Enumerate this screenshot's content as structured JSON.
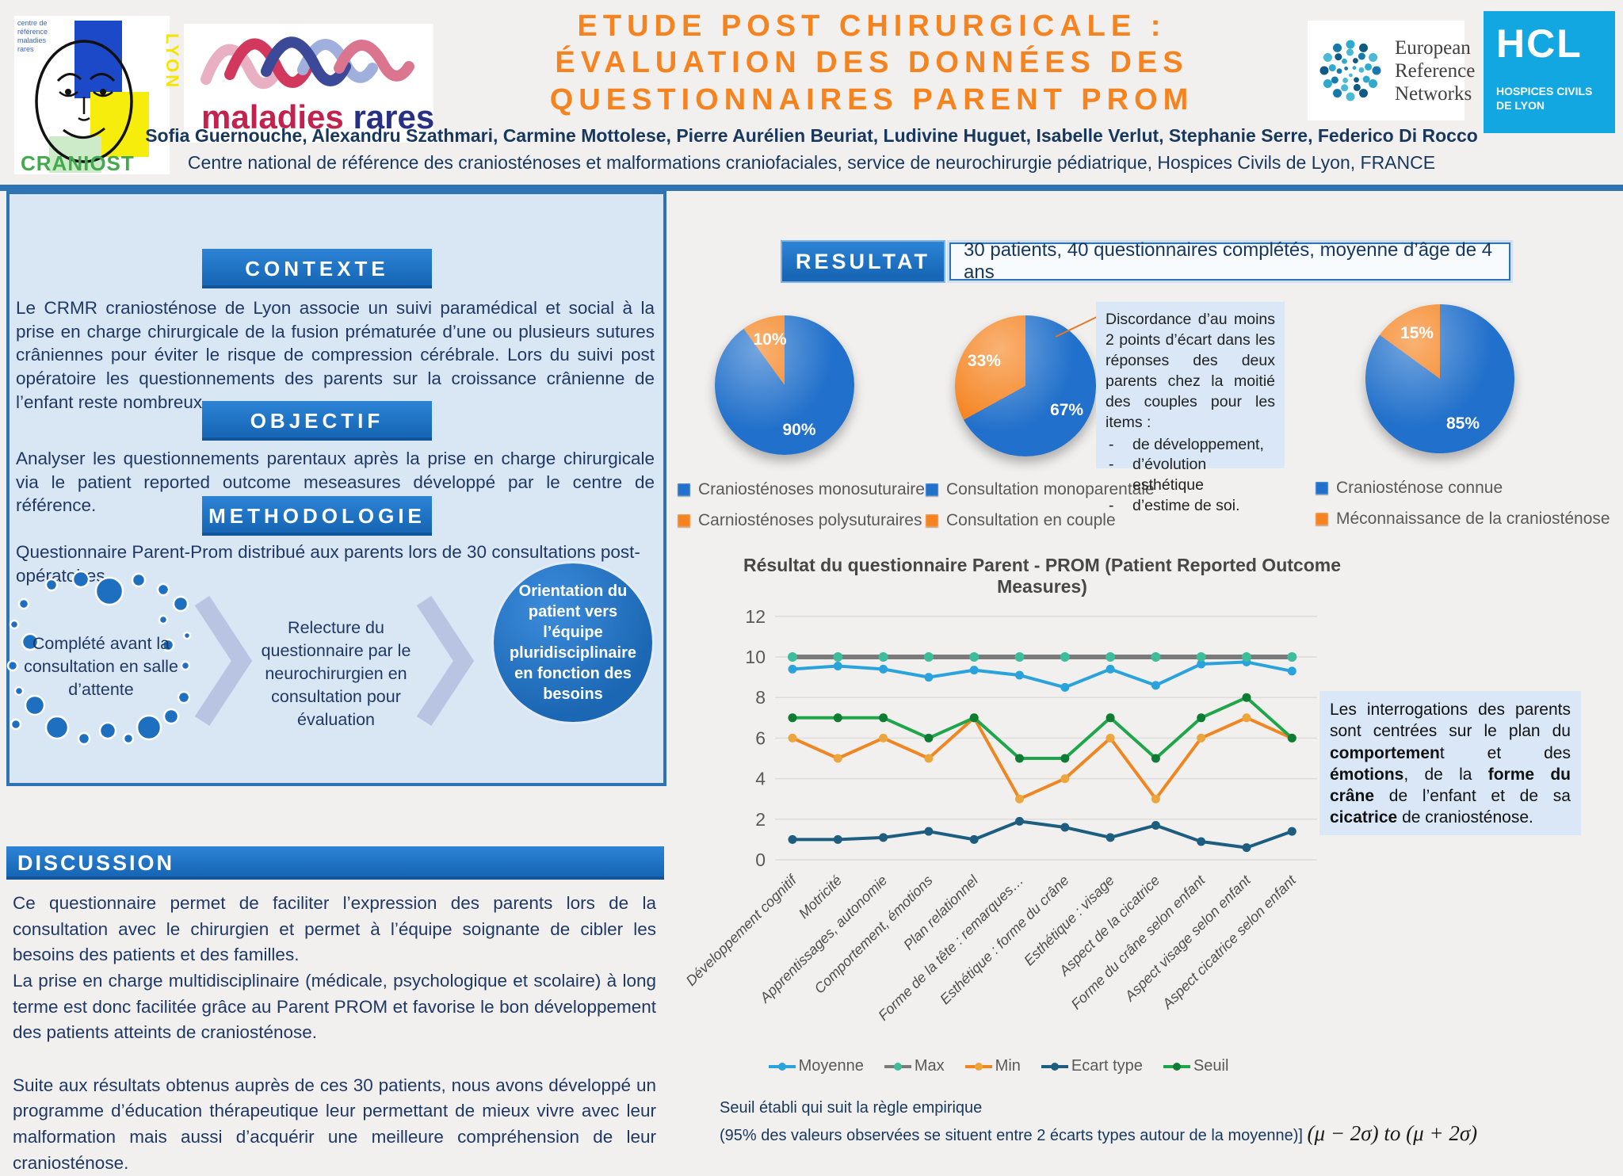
{
  "palette": {
    "accent_orange": "#f5831f",
    "accent_blue": "#2e74b5",
    "panel_bg": "#d9e6f4",
    "note_bg": "#d9e7f6",
    "navy_text": "#1f3864"
  },
  "header": {
    "title_lines": [
      "ETUDE POST CHIRURGICALE :",
      "ÉVALUATION DES DONNÉES DES",
      "QUESTIONNAIRES PARENT PROM"
    ],
    "authors": "Sofia Guernouche, Alexandru Szathmari, Carmine Mottolese, Pierre Aurélien Beuriat, Ludivine Huguet, Isabelle Verlut, Stephanie Serre, Federico Di Rocco",
    "affiliation": "Centre national de référence des craniosténoses et malformations craniofaciales, service de neurochirurgie pédiatrique, Hospices Civils de Lyon, FRANCE",
    "logos": {
      "craniost": {
        "name": "CRANIOST",
        "lyon": "LYON",
        "small_lines": [
          "centre de",
          "référence",
          "maladies",
          "rares"
        ]
      },
      "maladies_rares": {
        "word1": "maladies",
        "word2": " rares"
      },
      "ern": {
        "lines": [
          "European",
          "Reference",
          "Networks"
        ]
      },
      "hcl": {
        "acronym": "HCL",
        "sub_lines": [
          "HOSPICES CIVILS",
          "DE LYON"
        ]
      }
    }
  },
  "left": {
    "contexte": {
      "heading": "CONTEXTE",
      "body": "Le CRMR craniosténose de Lyon associe un suivi paramédical et social à la prise en charge chirurgicale de la fusion prématurée d’une ou plusieurs sutures crâniennes pour éviter le risque de compression cérébrale. Lors du suivi post opératoire les questionnements des parents sur la croissance crânienne de l’enfant reste nombreux."
    },
    "objectif": {
      "heading": "OBJECTIF",
      "body": "Analyser les questionnements parentaux après la prise en charge chirurgicale via le patient reported outcome meseasures développé par le centre de référence."
    },
    "methodologie": {
      "heading": "METHODOLOGIE",
      "body": "Questionnaire Parent-Prom distribué aux parents lors de 30 consultations post-opératoires",
      "flow": [
        "Complété avant la consultation en salle d’attente",
        "Relecture du questionnaire par le neurochirurgien en consultation pour évaluation",
        "Orientation du patient vers l’équipe pluridisciplinaire en fonction des besoins"
      ]
    }
  },
  "discussion": {
    "heading": "DISCUSSION",
    "paragraphs": [
      "Ce questionnaire permet de faciliter l’expression des parents lors de la consultation avec le chirurgien et permet à l’équipe soignante de cibler les besoins des patients et des familles.",
      "La prise en charge multidisciplinaire (médicale, psychologique et scolaire) à long terme est donc facilitée grâce au Parent PROM et favorise le bon développement des patients atteints de craniosténose.",
      "Suite aux résultats obtenus auprès de ces 30 patients, nous avons développé un programme d’éducation thérapeutique leur permettant de mieux vivre avec leur malformation mais aussi d’acquérir une meilleure compréhension de leur craniosténose."
    ]
  },
  "results": {
    "heading": "RESULTAT",
    "summary": "30 patients, 40 questionnaires complétés, moyenne d’âge de 4 ans",
    "pies": [
      {
        "slices": [
          {
            "label": "Craniosténoses monosuturaire",
            "pct": 90,
            "color": "#2170cb"
          },
          {
            "label": "Carniosténoses polysuturaires",
            "pct": 10,
            "color": "#f5831f"
          }
        ]
      },
      {
        "slices": [
          {
            "label": "Consultation monoparentale",
            "pct": 67,
            "color": "#2170cb"
          },
          {
            "label": "Consultation en couple",
            "pct": 33,
            "color": "#f5831f"
          }
        ]
      },
      {
        "slices": [
          {
            "label": "Craniosténose connue",
            "pct": 85,
            "color": "#2170cb"
          },
          {
            "label": "Méconnaissance de la craniosténose",
            "pct": 15,
            "color": "#f5831f"
          }
        ]
      }
    ],
    "discordance_note": {
      "para": "Discordance d’au moins 2 points d’écart dans les réponses des deux parents chez la moitié des couples pour les items :",
      "items": [
        "de développement,",
        "d’évolution esthétique",
        "d’estime de soi."
      ]
    },
    "interpretation_note": {
      "segments": [
        [
          "Les interrogations des parents sont centrées sur le plan du ",
          0
        ],
        [
          "comportemen",
          1
        ],
        [
          "t et des ",
          0
        ],
        [
          "émotions",
          1
        ],
        [
          ", de la ",
          0
        ],
        [
          "forme du crâne",
          1
        ],
        [
          " de l’enfant et de sa ",
          0
        ],
        [
          "cicatrice",
          1
        ],
        [
          " de craniosténose.",
          0
        ]
      ]
    },
    "threshold_note": {
      "line1": "Seuil établi qui suit la règle empirique",
      "line2": "(95% des valeurs observées se situent entre 2 écarts types autour de la moyenne)]",
      "formula": "(μ − 2σ) to (μ + 2σ)"
    }
  },
  "chart_data": {
    "type": "line",
    "title": "Résultat du questionnaire Parent - PROM  (Patient Reported Outcome Measures)",
    "categories": [
      "Développement cognitif",
      "Motricité",
      "Apprentissages, autonomie",
      "Comportement, émotions",
      "Plan relationnel",
      "Forme de la tête : remarques…",
      "Esthétique : forme du crâne",
      "Esthétique : visage",
      "Aspect de la cicatrice",
      "Forme du crâne selon enfant",
      "Aspect visage selon enfant",
      "Aspect cicatrice selon enfant"
    ],
    "ylim": [
      0,
      12
    ],
    "ytick_step": 2,
    "grid": true,
    "legend_position": "bottom",
    "series": [
      {
        "name": "Moyenne",
        "color": "#2aa3dc",
        "marker": "#2aa3dc",
        "values": [
          9.4,
          9.55,
          9.4,
          9.0,
          9.35,
          9.1,
          8.5,
          9.4,
          8.6,
          9.65,
          9.75,
          9.3
        ]
      },
      {
        "name": "Max",
        "color": "#7a7a7a",
        "marker": "#3dbd9b",
        "values": [
          10,
          10,
          10,
          10,
          10,
          10,
          10,
          10,
          10,
          10,
          10,
          10
        ]
      },
      {
        "name": "Min",
        "color": "#ef8621",
        "marker": "#eda63c",
        "values": [
          6,
          5,
          6,
          5,
          7,
          3,
          4,
          6,
          3,
          6,
          7,
          6
        ]
      },
      {
        "name": "Ecart type",
        "color": "#1d5e80",
        "marker": "#1d5e80",
        "values": [
          1,
          1,
          1.1,
          1.4,
          1,
          1.9,
          1.6,
          1.1,
          1.7,
          0.9,
          0.6,
          1.4
        ]
      },
      {
        "name": "Seuil",
        "color": "#1fa64a",
        "marker": "#0f7c33",
        "values": [
          7,
          7,
          7,
          6,
          7,
          5,
          5,
          7,
          5,
          7,
          8,
          6
        ]
      }
    ]
  }
}
